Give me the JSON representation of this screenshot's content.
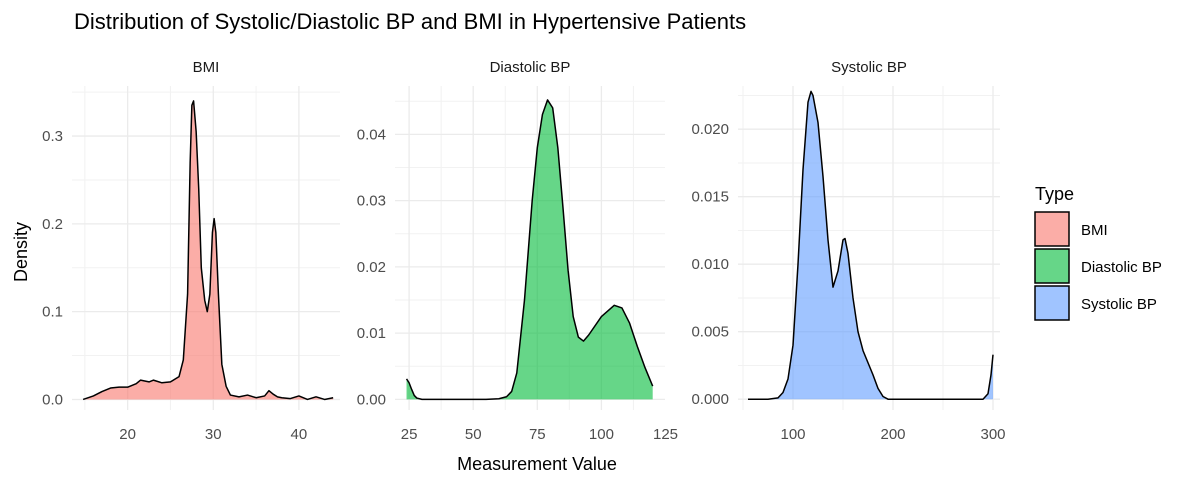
{
  "chart_data": {
    "type": "area",
    "title": "Distribution of Systolic/Diastolic BP and BMI in Hypertensive Patients",
    "xlabel": "Measurement Value",
    "ylabel": "Density",
    "legend": {
      "title": "Type",
      "position": "right",
      "entries": [
        "BMI",
        "Diastolic BP",
        "Systolic BP"
      ]
    },
    "grid": true,
    "panels": [
      {
        "name": "BMI",
        "color": "#F8766D",
        "xlim": [
          13.5,
          44.8
        ],
        "ylim": [
          -0.012,
          0.357
        ],
        "xticks": [
          20,
          30,
          40
        ],
        "xticklabels": [
          "20",
          "30",
          "40"
        ],
        "yticks": [
          0.0,
          0.1,
          0.2,
          0.3
        ],
        "yticklabels": [
          "0.0",
          "0.1",
          "0.2",
          "0.3"
        ],
        "x": [
          14.8,
          16,
          17,
          18,
          19,
          20,
          21,
          21.5,
          22,
          22.5,
          23,
          24,
          25,
          26,
          26.5,
          27,
          27.3,
          27.5,
          27.7,
          28,
          28.3,
          28.6,
          29,
          29.3,
          29.6,
          29.9,
          30.1,
          30.3,
          30.6,
          31,
          31.5,
          32,
          33,
          34,
          35,
          36,
          36.5,
          37,
          37.5,
          38,
          39,
          40,
          41,
          42,
          43,
          44
        ],
        "y": [
          0.0,
          0.004,
          0.009,
          0.013,
          0.014,
          0.014,
          0.018,
          0.022,
          0.021,
          0.02,
          0.022,
          0.019,
          0.02,
          0.026,
          0.045,
          0.12,
          0.27,
          0.335,
          0.34,
          0.305,
          0.24,
          0.15,
          0.113,
          0.1,
          0.12,
          0.19,
          0.206,
          0.19,
          0.12,
          0.04,
          0.015,
          0.005,
          0.003,
          0.005,
          0.002,
          0.004,
          0.01,
          0.006,
          0.003,
          0.002,
          0.001,
          0.004,
          0.0,
          0.003,
          0.0,
          0.002
        ]
      },
      {
        "name": "Diastolic BP",
        "color": "#00BA38",
        "xlim": [
          19.5,
          124.8
        ],
        "ylim": [
          -0.0016,
          0.0473
        ],
        "xticks": [
          25,
          50,
          75,
          100,
          125
        ],
        "xticklabels": [
          "25",
          "50",
          "75",
          "100",
          "125"
        ],
        "yticks": [
          0.0,
          0.01,
          0.02,
          0.03,
          0.04
        ],
        "yticklabels": [
          "0.00",
          "0.01",
          "0.02",
          "0.03",
          "0.04"
        ],
        "x": [
          24,
          25,
          26,
          27,
          28,
          30,
          35,
          45,
          55,
          60,
          63,
          65,
          67,
          70,
          73,
          75,
          77,
          79,
          81,
          83,
          85,
          87,
          89,
          91,
          93,
          95,
          100,
          105,
          108,
          111,
          114,
          117,
          120
        ],
        "y": [
          0.0031,
          0.0025,
          0.0015,
          0.0006,
          0.0002,
          0.0,
          0.0,
          0.0,
          0.0,
          0.0001,
          0.0004,
          0.0012,
          0.004,
          0.015,
          0.03,
          0.038,
          0.043,
          0.0452,
          0.044,
          0.038,
          0.029,
          0.0195,
          0.0125,
          0.0094,
          0.0088,
          0.0097,
          0.0125,
          0.0142,
          0.0138,
          0.0115,
          0.008,
          0.0048,
          0.002
        ]
      },
      {
        "name": "Systolic BP",
        "color": "#619CFF",
        "xlim": [
          45,
          307
        ],
        "ylim": [
          -0.0008,
          0.0232
        ],
        "xticks": [
          100,
          200,
          300
        ],
        "xticklabels": [
          "100",
          "200",
          "300"
        ],
        "yticks": [
          0.0,
          0.005,
          0.01,
          0.015,
          0.02
        ],
        "yticklabels": [
          "0.000",
          "0.005",
          "0.010",
          "0.015",
          "0.020"
        ],
        "x": [
          55,
          75,
          85,
          90,
          95,
          100,
          105,
          110,
          115,
          118,
          120,
          125,
          130,
          135,
          140,
          145,
          150,
          152,
          155,
          160,
          165,
          170,
          180,
          185,
          190,
          195,
          200,
          220,
          250,
          280,
          290,
          295,
          298,
          300
        ],
        "y": [
          0.0,
          0.0,
          0.0001,
          0.0005,
          0.0015,
          0.004,
          0.01,
          0.017,
          0.022,
          0.0228,
          0.0225,
          0.0205,
          0.0165,
          0.0118,
          0.0083,
          0.0095,
          0.0118,
          0.0119,
          0.0108,
          0.0075,
          0.005,
          0.0036,
          0.0018,
          0.0008,
          0.0002,
          0.0,
          0.0,
          0.0,
          0.0,
          0.0,
          0.0,
          0.0004,
          0.0018,
          0.0033
        ]
      }
    ]
  }
}
